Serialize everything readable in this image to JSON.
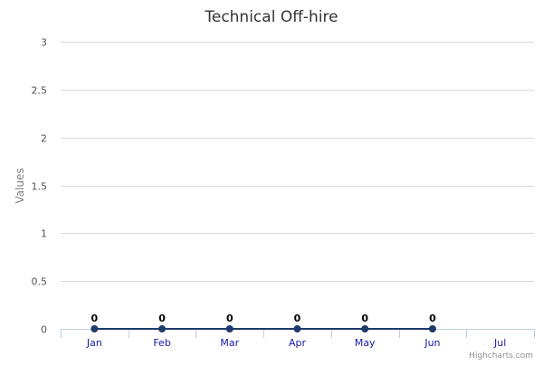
{
  "chart_data": {
    "type": "line",
    "title": "Technical Off-hire",
    "ylabel": "Values",
    "categories": [
      "Jan",
      "Feb",
      "Mar",
      "Apr",
      "May",
      "Jun",
      "Jul"
    ],
    "series": [
      {
        "values": [
          0,
          0,
          0,
          0,
          0,
          0,
          null
        ],
        "color": "#1f3a6b"
      }
    ],
    "ylim": [
      0,
      3
    ],
    "yticks": [
      "0",
      "0.5",
      "1",
      "1.5",
      "2",
      "2.5",
      "3"
    ],
    "grid": true,
    "data_labels": true
  },
  "credits": "Highcharts.com",
  "colors": {
    "gridline": "#d8d8d8",
    "axis": "#c0d0e0",
    "xtick_label": "#1a1aa8",
    "ytick_label": "#555555",
    "title": "#333333",
    "ylabel": "#808080",
    "credits": "#909090"
  }
}
